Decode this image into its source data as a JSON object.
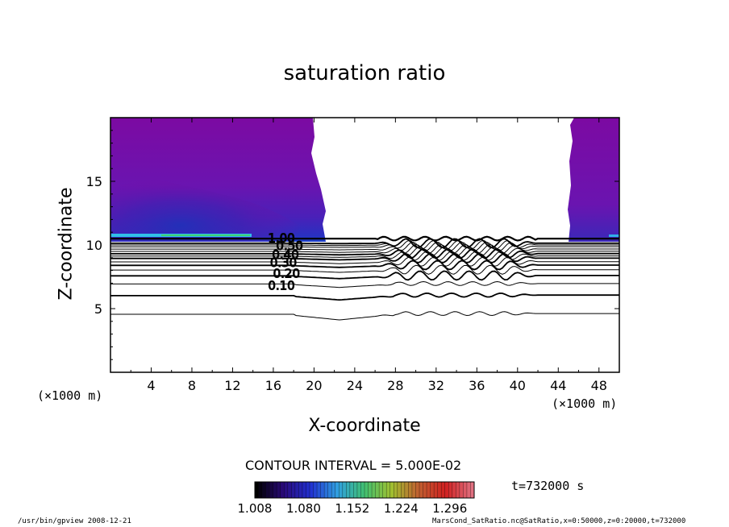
{
  "chart_data": {
    "type": "heatmap",
    "title": "saturation ratio",
    "xlabel": "X-coordinate",
    "ylabel": "Z-coordinate",
    "x_unit_left": "(×1000 m)",
    "x_unit_right": "(×1000 m)",
    "xlim": [
      0,
      50
    ],
    "ylim": [
      0,
      20
    ],
    "xticks": [
      4,
      8,
      12,
      16,
      20,
      24,
      28,
      32,
      36,
      40,
      44,
      48
    ],
    "yticks": [
      5,
      10,
      15
    ],
    "contour_interval_text": "CONTOUR INTERVAL = 5.000E-02",
    "time_text": "t=732000 s",
    "colorbar": {
      "tick_labels": [
        "1.008",
        "1.080",
        "1.152",
        "1.224",
        "1.296"
      ],
      "min": 1.008,
      "max": 1.332,
      "colors": [
        "#000000",
        "#2a0a7a",
        "#2030d0",
        "#30a0e0",
        "#40c070",
        "#a0c030",
        "#c06030",
        "#d02020",
        "#e07080"
      ]
    },
    "contour_labels": [
      "1.00",
      "0.50",
      "0.40",
      "0.30",
      "0.20",
      "0.10"
    ],
    "contour_levels_z_at_x22": [
      {
        "level": 0.05,
        "z": 4.0
      },
      {
        "level": 0.1,
        "z": 5.6
      },
      {
        "level": 0.15,
        "z": 6.6
      },
      {
        "level": 0.2,
        "z": 7.3
      },
      {
        "level": 0.25,
        "z": 7.8
      },
      {
        "level": 0.3,
        "z": 8.2
      },
      {
        "level": 0.35,
        "z": 8.5
      },
      {
        "level": 0.4,
        "z": 8.8
      },
      {
        "level": 0.45,
        "z": 9.0
      },
      {
        "level": 0.5,
        "z": 9.2
      },
      {
        "level": 0.6,
        "z": 9.4
      },
      {
        "level": 0.7,
        "z": 9.6
      },
      {
        "level": 0.8,
        "z": 9.8
      },
      {
        "level": 0.9,
        "z": 9.95
      },
      {
        "level": 1.0,
        "z": 10.1
      }
    ],
    "supersaturated_regions": [
      {
        "x_range": [
          0,
          20.2
        ],
        "z_range": [
          10.5,
          20
        ]
      },
      {
        "x_range": [
          45,
          50
        ],
        "z_range": [
          10.5,
          20
        ]
      }
    ],
    "fill_color": "#7a0aa0",
    "deep_fill_color": "#3a2ab0"
  },
  "footer": {
    "left": "/usr/bin/gpview   2008-12-21",
    "right": "MarsCond_SatRatio.nc@SatRatio,x=0:50000,z=0:20000,t=732000"
  }
}
